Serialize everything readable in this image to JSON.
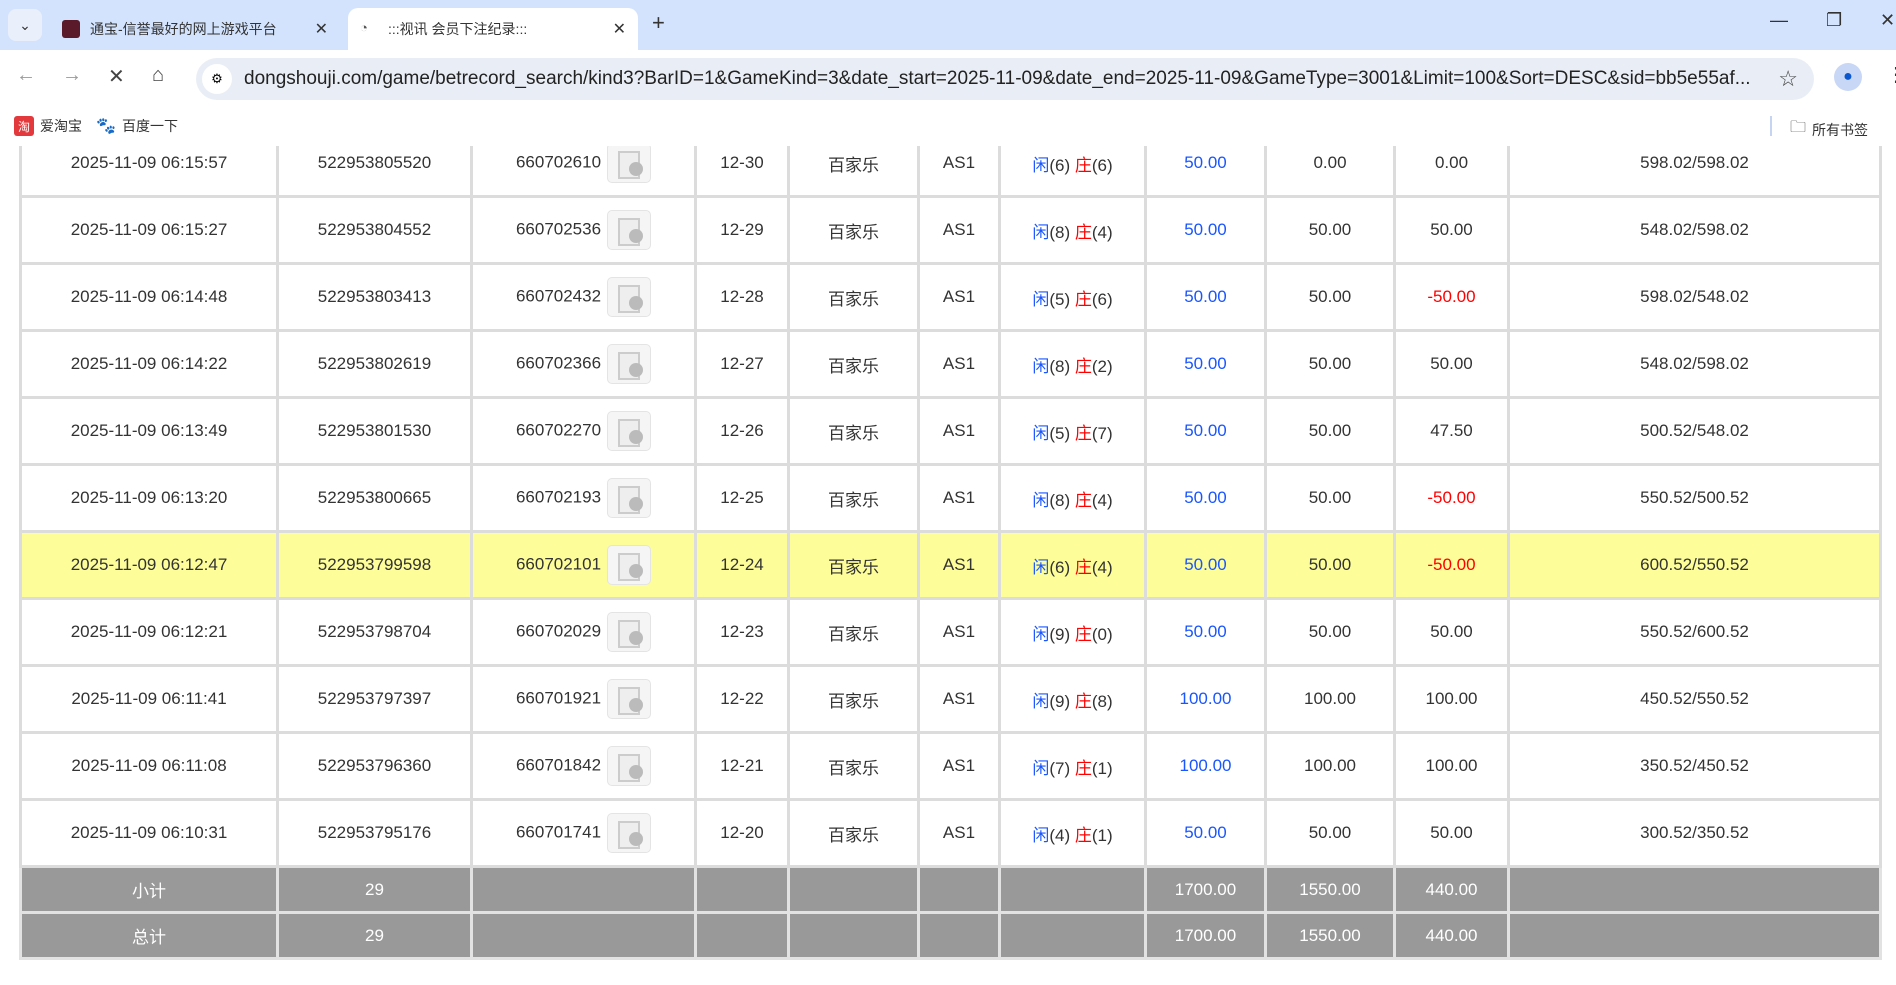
{
  "browser": {
    "tabs": [
      {
        "title": "通宝-信誉最好的网上游戏平台",
        "active": false
      },
      {
        "title": ":::视讯 会员下注纪录:::",
        "active": true
      }
    ],
    "url": "dongshouji.com/game/betrecord_search/kind3?BarID=1&GameKind=3&date_start=2025-11-09&date_end=2025-11-09&GameType=3001&Limit=100&Sort=DESC&sid=bb5e55af...",
    "bookmarks": [
      "爱淘宝",
      "百度一下"
    ],
    "all_bookmarks": "所有书签"
  },
  "labels": {
    "player": "闲",
    "banker": "庄"
  },
  "rows": [
    {
      "time": "2025-11-09 06:15:57",
      "bet_id": "522953805520",
      "round": "660702610",
      "shoe": "12-30",
      "game": "百家乐",
      "table": "AS1",
      "p": "6",
      "b": "6",
      "bet": "50.00",
      "valid": "0.00",
      "win": "0.00",
      "balance": "598.02/598.02"
    },
    {
      "time": "2025-11-09 06:15:27",
      "bet_id": "522953804552",
      "round": "660702536",
      "shoe": "12-29",
      "game": "百家乐",
      "table": "AS1",
      "p": "8",
      "b": "4",
      "bet": "50.00",
      "valid": "50.00",
      "win": "50.00",
      "balance": "548.02/598.02"
    },
    {
      "time": "2025-11-09 06:14:48",
      "bet_id": "522953803413",
      "round": "660702432",
      "shoe": "12-28",
      "game": "百家乐",
      "table": "AS1",
      "p": "5",
      "b": "6",
      "bet": "50.00",
      "valid": "50.00",
      "win": "-50.00",
      "balance": "598.02/548.02"
    },
    {
      "time": "2025-11-09 06:14:22",
      "bet_id": "522953802619",
      "round": "660702366",
      "shoe": "12-27",
      "game": "百家乐",
      "table": "AS1",
      "p": "8",
      "b": "2",
      "bet": "50.00",
      "valid": "50.00",
      "win": "50.00",
      "balance": "548.02/598.02"
    },
    {
      "time": "2025-11-09 06:13:49",
      "bet_id": "522953801530",
      "round": "660702270",
      "shoe": "12-26",
      "game": "百家乐",
      "table": "AS1",
      "p": "5",
      "b": "7",
      "bet": "50.00",
      "valid": "50.00",
      "win": "47.50",
      "balance": "500.52/548.02"
    },
    {
      "time": "2025-11-09 06:13:20",
      "bet_id": "522953800665",
      "round": "660702193",
      "shoe": "12-25",
      "game": "百家乐",
      "table": "AS1",
      "p": "8",
      "b": "4",
      "bet": "50.00",
      "valid": "50.00",
      "win": "-50.00",
      "balance": "550.52/500.52"
    },
    {
      "time": "2025-11-09 06:12:47",
      "bet_id": "522953799598",
      "round": "660702101",
      "shoe": "12-24",
      "game": "百家乐",
      "table": "AS1",
      "p": "6",
      "b": "4",
      "bet": "50.00",
      "valid": "50.00",
      "win": "-50.00",
      "balance": "600.52/550.52",
      "highlighted": true
    },
    {
      "time": "2025-11-09 06:12:21",
      "bet_id": "522953798704",
      "round": "660702029",
      "shoe": "12-23",
      "game": "百家乐",
      "table": "AS1",
      "p": "9",
      "b": "0",
      "bet": "50.00",
      "valid": "50.00",
      "win": "50.00",
      "balance": "550.52/600.52"
    },
    {
      "time": "2025-11-09 06:11:41",
      "bet_id": "522953797397",
      "round": "660701921",
      "shoe": "12-22",
      "game": "百家乐",
      "table": "AS1",
      "p": "9",
      "b": "8",
      "bet": "100.00",
      "valid": "100.00",
      "win": "100.00",
      "balance": "450.52/550.52"
    },
    {
      "time": "2025-11-09 06:11:08",
      "bet_id": "522953796360",
      "round": "660701842",
      "shoe": "12-21",
      "game": "百家乐",
      "table": "AS1",
      "p": "7",
      "b": "1",
      "bet": "100.00",
      "valid": "100.00",
      "win": "100.00",
      "balance": "350.52/450.52"
    },
    {
      "time": "2025-11-09 06:10:31",
      "bet_id": "522953795176",
      "round": "660701741",
      "shoe": "12-20",
      "game": "百家乐",
      "table": "AS1",
      "p": "4",
      "b": "1",
      "bet": "50.00",
      "valid": "50.00",
      "win": "50.00",
      "balance": "300.52/350.52"
    }
  ],
  "summary": [
    {
      "label": "小计",
      "count": "29",
      "bet": "1700.00",
      "valid": "1550.00",
      "win": "440.00"
    },
    {
      "label": "总计",
      "count": "29",
      "bet": "1700.00",
      "valid": "1550.00",
      "win": "440.00"
    }
  ],
  "colors": {
    "player": "#1a56ff",
    "banker": "#ff0000",
    "negative": "#ff0000",
    "highlight": "#fdfd9a",
    "summary_bg": "#999999"
  }
}
